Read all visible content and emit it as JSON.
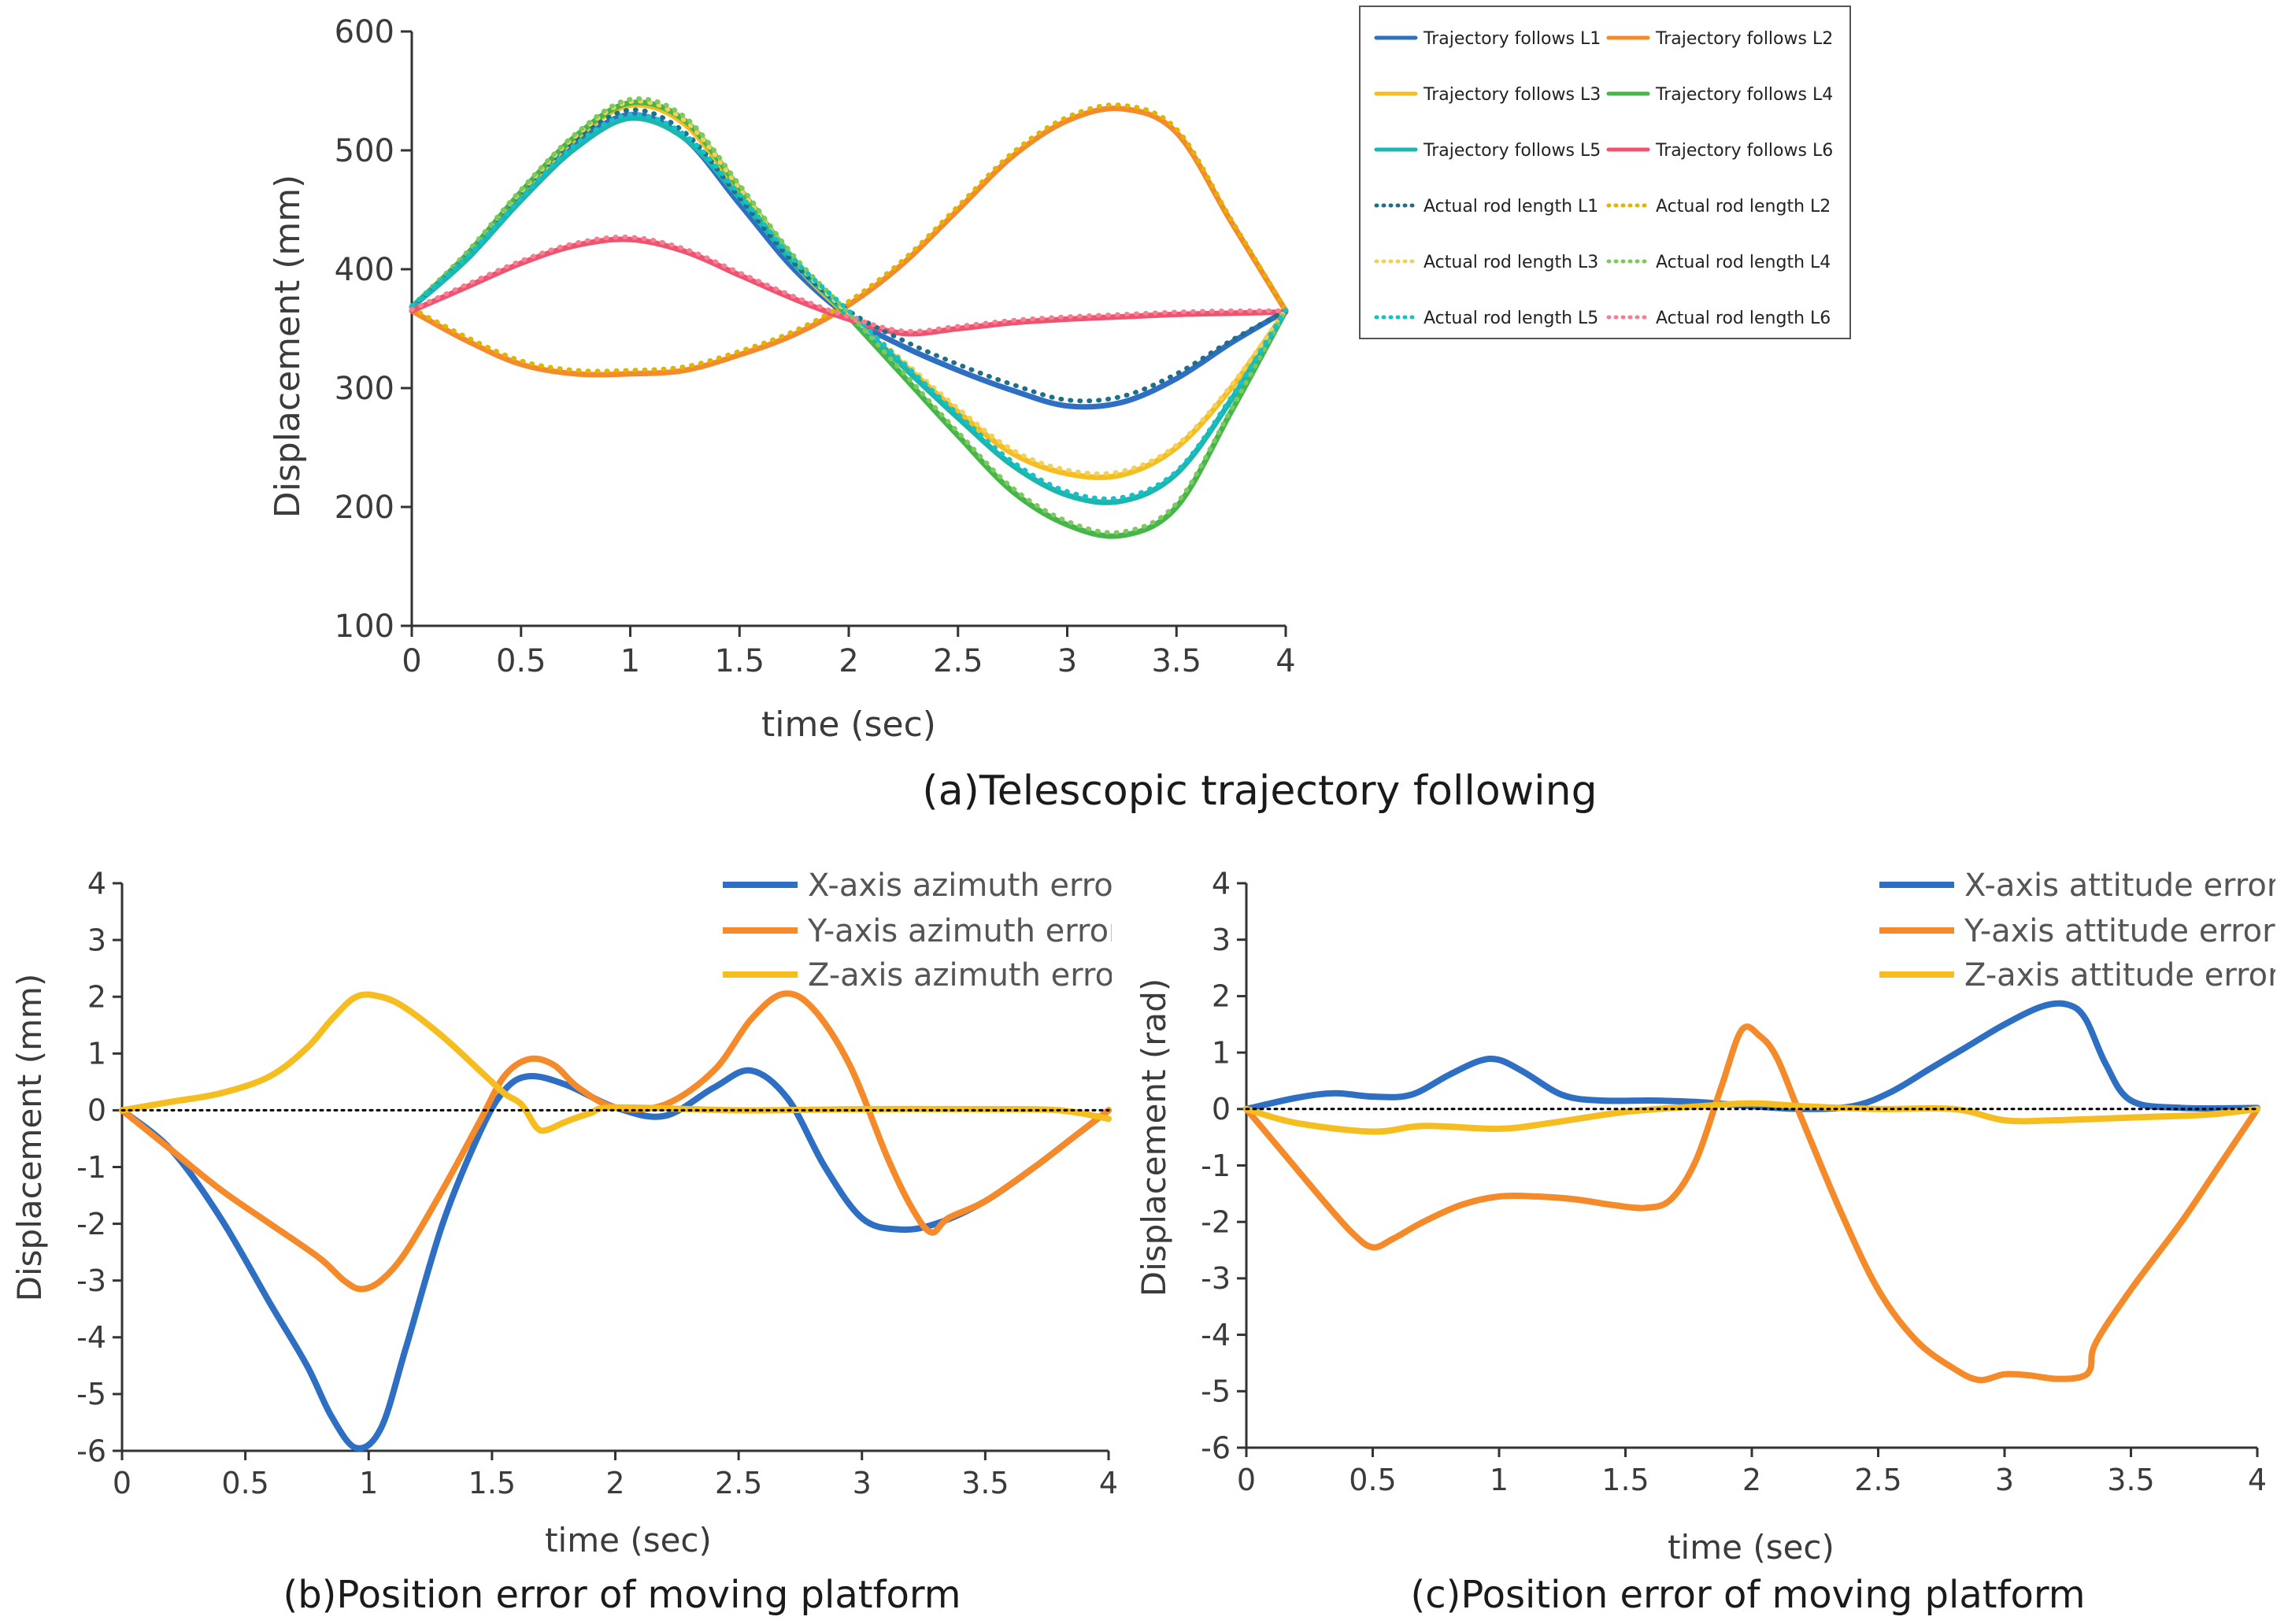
{
  "chart_data": [
    {
      "type": "line",
      "id": "a",
      "title": "(a)Telescopic trajectory following",
      "xlabel": "time (sec)",
      "ylabel": "Displacement (mm)",
      "xlim": [
        0,
        4
      ],
      "ylim": [
        100,
        600
      ],
      "xticks": [
        0,
        0.5,
        1,
        1.5,
        2,
        2.5,
        3,
        3.5,
        4
      ],
      "xtick_labels": [
        "0",
        "0.5",
        "1",
        "1.5",
        "2",
        "2.5",
        "3",
        "3.5",
        "4"
      ],
      "yticks": [
        100,
        200,
        300,
        400,
        500,
        600
      ],
      "ytick_labels": [
        "100",
        "200",
        "300",
        "400",
        "500",
        "600"
      ],
      "legend_position": "top-right, outside plot",
      "series": [
        {
          "name": "Trajectory follows L1",
          "color": "#2e6fc4",
          "dash": "solid",
          "x": [
            0,
            0.25,
            0.5,
            0.75,
            1,
            1.25,
            1.5,
            1.75,
            2,
            2.25,
            2.5,
            2.75,
            3,
            3.25,
            3.5,
            3.75,
            4
          ],
          "y": [
            368,
            410,
            460,
            505,
            530,
            510,
            455,
            400,
            360,
            335,
            315,
            298,
            285,
            288,
            308,
            338,
            365
          ]
        },
        {
          "name": "Trajectory follows L2",
          "color": "#f58a2b",
          "dash": "solid",
          "x": [
            0,
            0.25,
            0.5,
            0.75,
            1,
            1.25,
            1.5,
            1.75,
            2,
            2.25,
            2.5,
            2.75,
            3,
            3.25,
            3.5,
            3.75,
            4
          ],
          "y": [
            365,
            340,
            320,
            312,
            312,
            315,
            328,
            345,
            370,
            405,
            450,
            495,
            525,
            535,
            515,
            440,
            365
          ]
        },
        {
          "name": "Trajectory follows L3",
          "color": "#f5bd1f",
          "dash": "solid",
          "x": [
            0,
            0.25,
            0.5,
            0.75,
            1,
            1.25,
            1.5,
            1.75,
            2,
            2.25,
            2.5,
            2.75,
            3,
            3.25,
            3.5,
            3.75,
            4
          ],
          "y": [
            368,
            410,
            463,
            510,
            538,
            522,
            465,
            405,
            360,
            320,
            280,
            245,
            228,
            227,
            250,
            300,
            365
          ]
        },
        {
          "name": "Trajectory follows L4",
          "color": "#45b648",
          "dash": "solid",
          "x": [
            0,
            0.25,
            0.5,
            0.75,
            1,
            1.25,
            1.5,
            1.75,
            2,
            2.25,
            2.5,
            2.75,
            3,
            3.25,
            3.5,
            3.75,
            4
          ],
          "y": [
            368,
            412,
            465,
            512,
            540,
            525,
            468,
            408,
            360,
            310,
            260,
            213,
            185,
            176,
            200,
            280,
            365
          ]
        },
        {
          "name": "Trajectory follows L5",
          "color": "#1cb5b0",
          "dash": "solid",
          "x": [
            0,
            0.25,
            0.5,
            0.75,
            1,
            1.25,
            1.5,
            1.75,
            2,
            2.25,
            2.5,
            2.75,
            3,
            3.25,
            3.5,
            3.75,
            4
          ],
          "y": [
            368,
            408,
            458,
            502,
            527,
            510,
            460,
            405,
            362,
            318,
            275,
            235,
            210,
            205,
            228,
            290,
            365
          ]
        },
        {
          "name": "Trajectory follows L6",
          "color": "#f0536f",
          "dash": "solid",
          "x": [
            0,
            0.25,
            0.5,
            0.75,
            1,
            1.25,
            1.5,
            1.75,
            2,
            2.25,
            2.5,
            2.75,
            3,
            3.25,
            3.5,
            3.75,
            4
          ],
          "y": [
            365,
            385,
            405,
            420,
            425,
            415,
            395,
            375,
            358,
            346,
            350,
            355,
            358,
            360,
            362,
            363,
            364
          ]
        },
        {
          "name": "Actual rod length L1",
          "color": "#1f6f8b",
          "dash": "dotted",
          "x": [
            0,
            0.25,
            0.5,
            0.75,
            1,
            1.25,
            1.5,
            1.75,
            2,
            2.25,
            2.5,
            2.75,
            3,
            3.25,
            3.5,
            3.75,
            4
          ],
          "y": [
            368,
            412,
            463,
            508,
            534,
            515,
            460,
            405,
            365,
            340,
            320,
            303,
            290,
            293,
            312,
            340,
            365
          ]
        },
        {
          "name": "Actual rod length L2",
          "color": "#e0b400",
          "dash": "dotted",
          "x": [
            0,
            0.25,
            0.5,
            0.75,
            1,
            1.25,
            1.5,
            1.75,
            2,
            2.25,
            2.5,
            2.75,
            3,
            3.25,
            3.5,
            3.75,
            4
          ],
          "y": [
            367,
            343,
            323,
            315,
            315,
            318,
            331,
            348,
            373,
            408,
            453,
            498,
            528,
            538,
            518,
            442,
            366
          ]
        },
        {
          "name": "Actual rod length L3",
          "color": "#f2d15a",
          "dash": "dotted",
          "x": [
            0,
            0.25,
            0.5,
            0.75,
            1,
            1.25,
            1.5,
            1.75,
            2,
            2.25,
            2.5,
            2.75,
            3,
            3.25,
            3.5,
            3.75,
            4
          ],
          "y": [
            369,
            412,
            465,
            512,
            541,
            525,
            468,
            408,
            363,
            323,
            283,
            248,
            231,
            230,
            252,
            302,
            366
          ]
        },
        {
          "name": "Actual rod length L4",
          "color": "#7dc95e",
          "dash": "dotted",
          "x": [
            0,
            0.25,
            0.5,
            0.75,
            1,
            1.25,
            1.5,
            1.75,
            2,
            2.25,
            2.5,
            2.75,
            3,
            3.25,
            3.5,
            3.75,
            4
          ],
          "y": [
            369,
            414,
            467,
            514,
            543,
            528,
            471,
            411,
            363,
            313,
            263,
            216,
            188,
            179,
            203,
            282,
            366
          ]
        },
        {
          "name": "Actual rod length L5",
          "color": "#13c1c7",
          "dash": "dotted",
          "x": [
            0,
            0.25,
            0.5,
            0.75,
            1,
            1.25,
            1.5,
            1.75,
            2,
            2.25,
            2.5,
            2.75,
            3,
            3.25,
            3.5,
            3.75,
            4
          ],
          "y": [
            369,
            410,
            460,
            505,
            530,
            513,
            463,
            408,
            365,
            321,
            278,
            238,
            213,
            208,
            230,
            292,
            366
          ]
        },
        {
          "name": "Actual rod length L6",
          "color": "#f47f92",
          "dash": "dotted",
          "x": [
            0,
            0.25,
            0.5,
            0.75,
            1,
            1.25,
            1.5,
            1.75,
            2,
            2.25,
            2.5,
            2.75,
            3,
            3.25,
            3.5,
            3.75,
            4
          ],
          "y": [
            366,
            387,
            407,
            422,
            427,
            417,
            397,
            377,
            360,
            348,
            352,
            357,
            360,
            362,
            364,
            365,
            365
          ]
        }
      ]
    },
    {
      "type": "line",
      "id": "b",
      "title": "(b)Position error of moving platform",
      "xlabel": "time (sec)",
      "ylabel": "Displacement (mm)",
      "xlim": [
        0,
        4
      ],
      "ylim": [
        -6,
        4
      ],
      "xticks": [
        0,
        0.5,
        1,
        1.5,
        2,
        2.5,
        3,
        3.5,
        4
      ],
      "xtick_labels": [
        "0",
        "0.5",
        "1",
        "1.5",
        "2",
        "2.5",
        "3",
        "3.5",
        "4"
      ],
      "yticks": [
        -6,
        -5,
        -4,
        -3,
        -2,
        -1,
        0,
        1,
        2,
        3,
        4
      ],
      "ytick_labels": [
        "-6",
        "-5",
        "-4",
        "-3",
        "-2",
        "-1",
        "0",
        "1",
        "2",
        "3",
        "4"
      ],
      "zero_line": "dotted",
      "legend_position": "top-right",
      "series": [
        {
          "name": "X-axis azimuth error",
          "color": "#2e6fc4",
          "x": [
            0,
            0.2,
            0.4,
            0.6,
            0.75,
            0.85,
            0.95,
            1.05,
            1.15,
            1.3,
            1.45,
            1.55,
            1.65,
            1.8,
            2.0,
            2.2,
            2.4,
            2.55,
            2.7,
            2.85,
            3.0,
            3.15,
            3.3,
            3.5,
            3.7,
            3.85,
            4.0
          ],
          "y": [
            0,
            -0.7,
            -1.9,
            -3.4,
            -4.5,
            -5.4,
            -5.95,
            -5.6,
            -4.2,
            -2.0,
            -0.4,
            0.35,
            0.6,
            0.45,
            0.05,
            -0.1,
            0.4,
            0.7,
            0.2,
            -1.0,
            -1.9,
            -2.1,
            -2.0,
            -1.6,
            -1.0,
            -0.5,
            0
          ]
        },
        {
          "name": "Y-axis azimuth error",
          "color": "#f58a2b",
          "x": [
            0,
            0.2,
            0.4,
            0.6,
            0.8,
            0.9,
            0.97,
            1.05,
            1.15,
            1.3,
            1.45,
            1.55,
            1.65,
            1.75,
            1.85,
            2.0,
            2.2,
            2.4,
            2.55,
            2.68,
            2.8,
            2.95,
            3.1,
            3.2,
            3.28,
            3.35,
            3.5,
            3.7,
            3.85,
            4.0
          ],
          "y": [
            0,
            -0.7,
            -1.4,
            -2.0,
            -2.6,
            -3.0,
            -3.15,
            -3.0,
            -2.5,
            -1.4,
            -0.2,
            0.6,
            0.9,
            0.8,
            0.4,
            0.05,
            0.1,
            0.7,
            1.6,
            2.05,
            1.8,
            0.8,
            -0.8,
            -1.7,
            -2.15,
            -1.9,
            -1.6,
            -1.0,
            -0.5,
            0
          ]
        },
        {
          "name": "Z-axis azimuth error",
          "color": "#f5bd1f",
          "x": [
            0,
            0.2,
            0.4,
            0.6,
            0.75,
            0.85,
            0.95,
            1.05,
            1.15,
            1.3,
            1.45,
            1.55,
            1.62,
            1.68,
            1.72,
            1.8,
            1.9,
            2.0,
            2.5,
            3.0,
            3.5,
            3.8,
            4.0
          ],
          "y": [
            0,
            0.15,
            0.3,
            0.6,
            1.1,
            1.6,
            2.0,
            2.0,
            1.8,
            1.3,
            0.7,
            0.3,
            0.1,
            -0.3,
            -0.35,
            -0.2,
            -0.05,
            0.05,
            0.0,
            0.02,
            0.02,
            0.0,
            -0.15
          ]
        },
        {
          "name": "zero",
          "color": "#000000",
          "dash": "dotted",
          "x": [
            0,
            4
          ],
          "y": [
            0,
            0
          ]
        }
      ]
    },
    {
      "type": "line",
      "id": "c",
      "title": "(c)Position error of moving platform",
      "xlabel": "time (sec)",
      "ylabel": "Displacement (rad)",
      "xlim": [
        0,
        4
      ],
      "ylim": [
        -6,
        4
      ],
      "xticks": [
        0,
        0.5,
        1,
        1.5,
        2,
        2.5,
        3,
        3.5,
        4
      ],
      "xtick_labels": [
        "0",
        "0.5",
        "1",
        "1.5",
        "2",
        "2.5",
        "3",
        "3.5",
        "4"
      ],
      "yticks": [
        -6,
        -5,
        -4,
        -3,
        -2,
        -1,
        0,
        1,
        2,
        3,
        4
      ],
      "ytick_labels": [
        "-6",
        "-5",
        "-4",
        "-3",
        "-2",
        "-1",
        "0",
        "1",
        "2",
        "3",
        "4"
      ],
      "zero_line": "dotted",
      "legend_position": "top-right",
      "series": [
        {
          "name": "X-axis attitude error",
          "color": "#2e6fc4",
          "x": [
            0,
            0.2,
            0.35,
            0.5,
            0.65,
            0.8,
            0.92,
            1.0,
            1.1,
            1.25,
            1.4,
            1.6,
            1.8,
            2.0,
            2.2,
            2.4,
            2.55,
            2.7,
            2.85,
            3.0,
            3.15,
            3.25,
            3.32,
            3.4,
            3.5,
            3.7,
            4.0
          ],
          "y": [
            0,
            0.2,
            0.28,
            0.22,
            0.25,
            0.6,
            0.85,
            0.87,
            0.65,
            0.25,
            0.15,
            0.15,
            0.12,
            0.05,
            0.0,
            0.05,
            0.3,
            0.7,
            1.1,
            1.5,
            1.82,
            1.85,
            1.6,
            0.8,
            0.15,
            0.02,
            0.02
          ]
        },
        {
          "name": "Y-axis attitude error",
          "color": "#f58a2b",
          "x": [
            0,
            0.15,
            0.3,
            0.42,
            0.5,
            0.58,
            0.7,
            0.85,
            1.0,
            1.15,
            1.3,
            1.45,
            1.58,
            1.68,
            1.78,
            1.88,
            1.96,
            2.03,
            2.1,
            2.2,
            2.35,
            2.5,
            2.65,
            2.8,
            2.9,
            3.0,
            3.1,
            3.2,
            3.3,
            3.34,
            3.36,
            3.5,
            3.7,
            3.85,
            4.0
          ],
          "y": [
            0,
            -0.8,
            -1.6,
            -2.2,
            -2.45,
            -2.3,
            -2.0,
            -1.7,
            -1.55,
            -1.55,
            -1.6,
            -1.7,
            -1.75,
            -1.6,
            -0.9,
            0.4,
            1.4,
            1.3,
            0.9,
            -0.2,
            -1.8,
            -3.2,
            -4.1,
            -4.6,
            -4.8,
            -4.7,
            -4.72,
            -4.78,
            -4.75,
            -4.6,
            -4.15,
            -3.2,
            -2.0,
            -1.0,
            0
          ]
        },
        {
          "name": "Z-axis attitude error",
          "color": "#f5bd1f",
          "x": [
            0,
            0.2,
            0.5,
            0.7,
            1.0,
            1.2,
            1.5,
            1.8,
            2.0,
            2.2,
            2.5,
            2.8,
            3.0,
            3.2,
            3.5,
            3.8,
            4.0
          ],
          "y": [
            0,
            -0.25,
            -0.4,
            -0.3,
            -0.35,
            -0.25,
            -0.05,
            0.05,
            0.1,
            0.05,
            0.0,
            0.0,
            -0.2,
            -0.2,
            -0.15,
            -0.1,
            0
          ]
        },
        {
          "name": "zero",
          "color": "#000000",
          "dash": "dotted",
          "x": [
            0,
            4
          ],
          "y": [
            0,
            0
          ]
        }
      ]
    }
  ]
}
